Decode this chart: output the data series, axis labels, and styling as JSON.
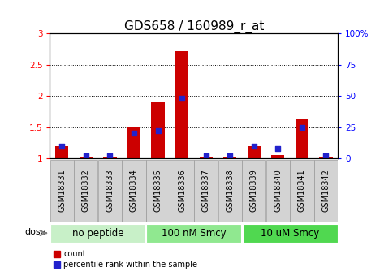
{
  "title": "GDS658 / 160989_r_at",
  "samples": [
    "GSM18331",
    "GSM18332",
    "GSM18333",
    "GSM18334",
    "GSM18335",
    "GSM18336",
    "GSM18337",
    "GSM18338",
    "GSM18339",
    "GSM18340",
    "GSM18341",
    "GSM18342"
  ],
  "count_values": [
    1.2,
    1.02,
    1.02,
    1.5,
    1.9,
    2.72,
    1.02,
    1.02,
    1.2,
    1.05,
    1.62,
    1.02
  ],
  "percentile_values": [
    10,
    2,
    2,
    20,
    22,
    48,
    2,
    2,
    10,
    8,
    25,
    2
  ],
  "groups": [
    {
      "label": "no peptide",
      "start": 0,
      "end": 4,
      "color": "#c8f0c8"
    },
    {
      "label": "100 nM Smcy",
      "start": 4,
      "end": 8,
      "color": "#90e890"
    },
    {
      "label": "10 uM Smcy",
      "start": 8,
      "end": 12,
      "color": "#50d850"
    }
  ],
  "ylim_left": [
    1.0,
    3.0
  ],
  "ylim_right": [
    0,
    100
  ],
  "yticks_left": [
    1.0,
    1.5,
    2.0,
    2.5,
    3.0
  ],
  "ytick_labels_left": [
    "1",
    "1.5",
    "2",
    "2.5",
    "3"
  ],
  "yticks_right": [
    0,
    25,
    50,
    75,
    100
  ],
  "ytick_labels_right": [
    "0",
    "25",
    "50",
    "75",
    "100%"
  ],
  "bar_color_red": "#cc0000",
  "bar_color_blue": "#2222cc",
  "dot_size": 25,
  "grid_color": "#000000",
  "bg_color": "#ffffff",
  "sample_box_color": "#d3d3d3",
  "sample_box_edge_color": "#999999",
  "label_count": "count",
  "label_percentile": "percentile rank within the sample",
  "title_fontsize": 11,
  "tick_fontsize": 7.5,
  "sample_fontsize": 7,
  "group_label_fontsize": 8.5,
  "dose_fontsize": 8
}
